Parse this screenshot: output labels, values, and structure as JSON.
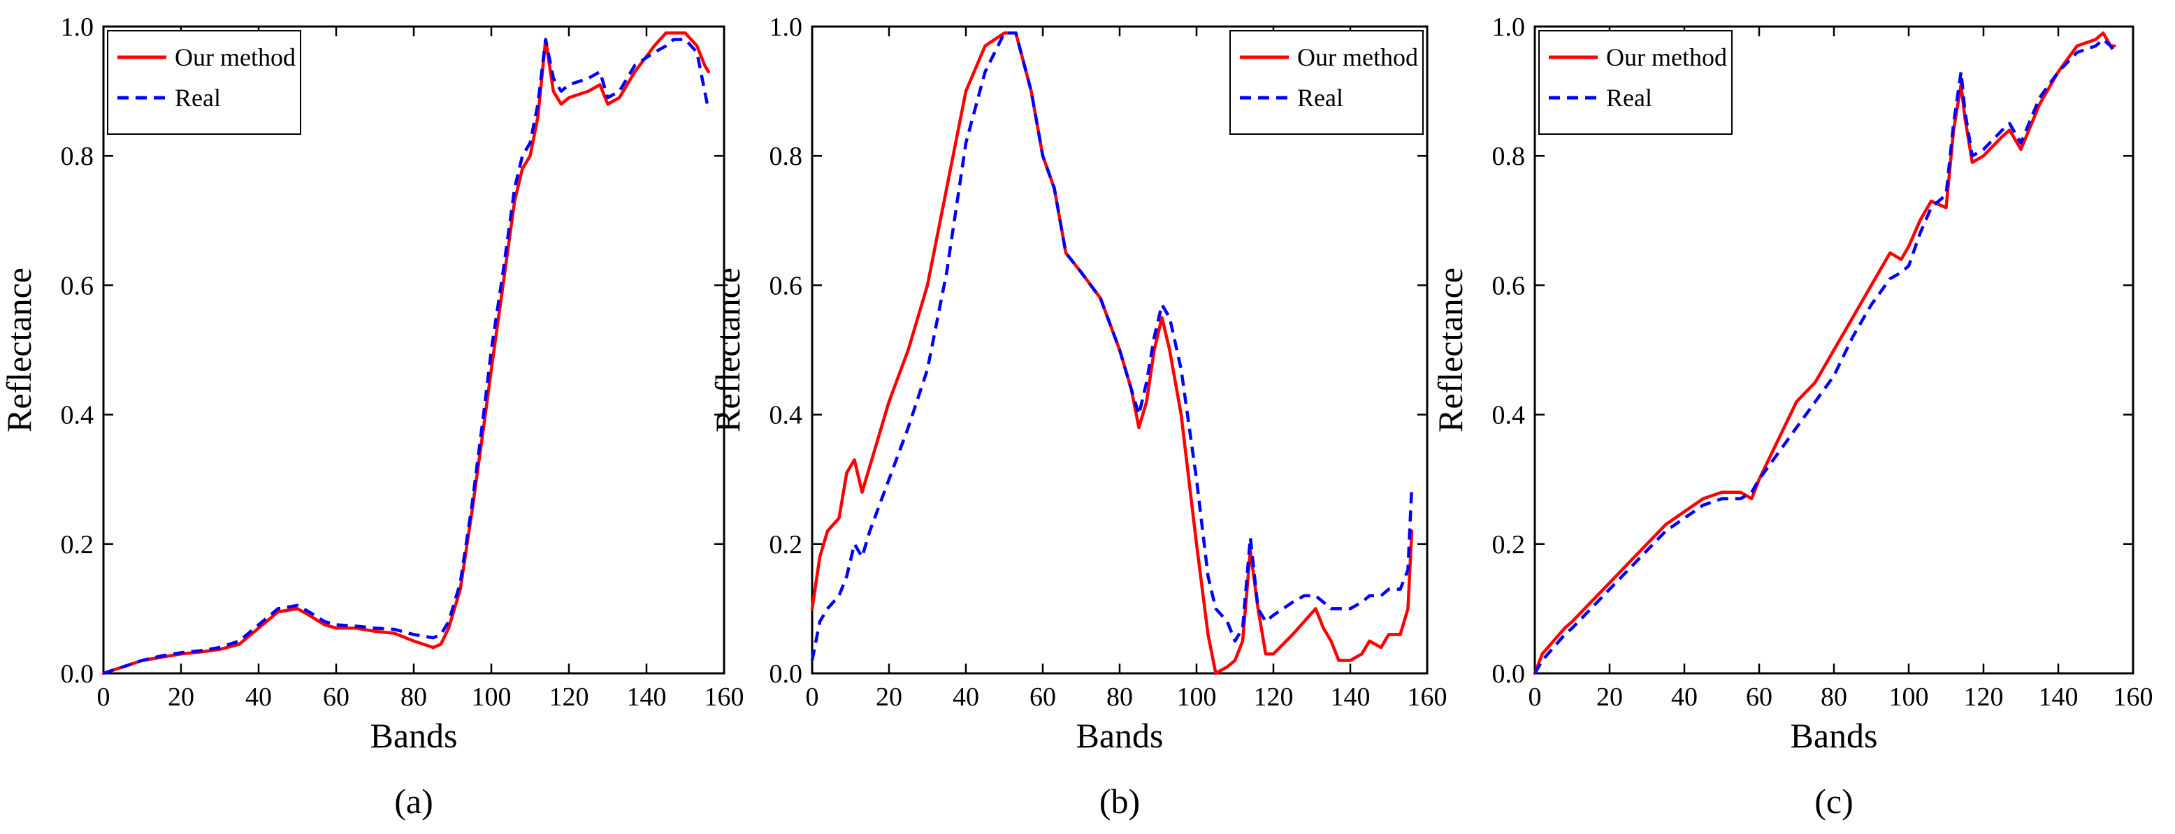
{
  "chart_data": [
    {
      "type": "line",
      "caption": "(a)",
      "xlabel": "Bands",
      "ylabel": "Reflectance",
      "xlim": [
        0,
        160
      ],
      "ylim": [
        0,
        1
      ],
      "xticks": [
        "0",
        "20",
        "40",
        "60",
        "80",
        "100",
        "120",
        "140",
        "160"
      ],
      "yticks": [
        "0.0",
        "0.2",
        "0.4",
        "0.6",
        "0.8",
        "1.0"
      ],
      "grid": false,
      "legend_position": "top-left",
      "series": [
        {
          "name": "Our method",
          "color": "#ff0000",
          "style": "solid",
          "x": [
            0,
            5,
            10,
            15,
            20,
            25,
            30,
            35,
            40,
            45,
            50,
            53,
            57,
            60,
            65,
            70,
            75,
            80,
            85,
            87,
            89,
            92,
            95,
            98,
            100,
            103,
            106,
            108,
            110,
            112,
            114,
            116,
            118,
            120,
            125,
            128,
            130,
            133,
            137,
            142,
            145,
            147,
            150,
            153,
            155,
            156
          ],
          "y": [
            0.0,
            0.01,
            0.02,
            0.025,
            0.03,
            0.033,
            0.037,
            0.045,
            0.07,
            0.095,
            0.1,
            0.09,
            0.075,
            0.07,
            0.07,
            0.065,
            0.062,
            0.05,
            0.04,
            0.045,
            0.07,
            0.13,
            0.25,
            0.38,
            0.47,
            0.6,
            0.73,
            0.78,
            0.8,
            0.86,
            0.98,
            0.9,
            0.88,
            0.89,
            0.9,
            0.91,
            0.88,
            0.89,
            0.93,
            0.97,
            0.99,
            0.99,
            0.99,
            0.97,
            0.94,
            0.93
          ]
        },
        {
          "name": "Real",
          "color": "#0000ff",
          "style": "dashed",
          "x": [
            0,
            5,
            10,
            15,
            20,
            25,
            30,
            35,
            40,
            45,
            50,
            53,
            57,
            60,
            65,
            70,
            75,
            80,
            85,
            87,
            89,
            92,
            95,
            98,
            100,
            103,
            106,
            108,
            110,
            112,
            114,
            116,
            118,
            120,
            125,
            128,
            130,
            133,
            137,
            142,
            145,
            147,
            150,
            153,
            155,
            156
          ],
          "y": [
            0.0,
            0.01,
            0.02,
            0.027,
            0.032,
            0.035,
            0.04,
            0.05,
            0.075,
            0.1,
            0.105,
            0.095,
            0.08,
            0.075,
            0.073,
            0.07,
            0.068,
            0.06,
            0.055,
            0.06,
            0.08,
            0.14,
            0.26,
            0.4,
            0.5,
            0.62,
            0.75,
            0.8,
            0.82,
            0.88,
            0.98,
            0.92,
            0.9,
            0.91,
            0.92,
            0.93,
            0.89,
            0.9,
            0.94,
            0.96,
            0.97,
            0.98,
            0.98,
            0.96,
            0.9,
            0.87
          ]
        }
      ]
    },
    {
      "type": "line",
      "caption": "(b)",
      "xlabel": "Bands",
      "ylabel": "Reflectance",
      "xlim": [
        0,
        160
      ],
      "ylim": [
        0,
        1
      ],
      "xticks": [
        "0",
        "20",
        "40",
        "60",
        "80",
        "100",
        "120",
        "140",
        "160"
      ],
      "yticks": [
        "0.0",
        "0.2",
        "0.4",
        "0.6",
        "0.8",
        "1.0"
      ],
      "grid": false,
      "legend_position": "top-right",
      "series": [
        {
          "name": "Our method",
          "color": "#ff0000",
          "style": "solid",
          "x": [
            0,
            2,
            4,
            7,
            9,
            11,
            13,
            15,
            20,
            25,
            30,
            35,
            40,
            45,
            50,
            53,
            57,
            60,
            63,
            66,
            70,
            75,
            80,
            83,
            85,
            87,
            89,
            91,
            93,
            96,
            100,
            103,
            105,
            108,
            110,
            112,
            114,
            116,
            118,
            120,
            125,
            128,
            131,
            133,
            135,
            137,
            140,
            143,
            145,
            148,
            150,
            153,
            155,
            156
          ],
          "y": [
            0.1,
            0.18,
            0.22,
            0.24,
            0.31,
            0.33,
            0.28,
            0.32,
            0.42,
            0.5,
            0.6,
            0.75,
            0.9,
            0.97,
            0.99,
            0.99,
            0.9,
            0.8,
            0.75,
            0.65,
            0.62,
            0.58,
            0.5,
            0.44,
            0.38,
            0.42,
            0.5,
            0.55,
            0.5,
            0.4,
            0.2,
            0.06,
            0.0,
            0.01,
            0.02,
            0.05,
            0.19,
            0.1,
            0.03,
            0.03,
            0.06,
            0.08,
            0.1,
            0.07,
            0.05,
            0.02,
            0.02,
            0.03,
            0.05,
            0.04,
            0.06,
            0.06,
            0.1,
            0.22
          ]
        },
        {
          "name": "Real",
          "color": "#0000ff",
          "style": "dashed",
          "x": [
            0,
            2,
            4,
            7,
            9,
            11,
            13,
            15,
            20,
            25,
            30,
            35,
            40,
            45,
            50,
            53,
            57,
            60,
            63,
            66,
            70,
            75,
            80,
            83,
            85,
            87,
            89,
            91,
            93,
            96,
            100,
            103,
            105,
            108,
            110,
            112,
            114,
            116,
            118,
            120,
            125,
            128,
            131,
            133,
            135,
            137,
            140,
            143,
            145,
            148,
            150,
            153,
            155,
            156
          ],
          "y": [
            0.02,
            0.08,
            0.1,
            0.12,
            0.15,
            0.2,
            0.18,
            0.22,
            0.3,
            0.38,
            0.47,
            0.62,
            0.82,
            0.93,
            0.99,
            0.99,
            0.9,
            0.8,
            0.75,
            0.65,
            0.62,
            0.58,
            0.5,
            0.44,
            0.4,
            0.45,
            0.52,
            0.57,
            0.55,
            0.47,
            0.3,
            0.15,
            0.1,
            0.08,
            0.05,
            0.07,
            0.21,
            0.1,
            0.08,
            0.09,
            0.11,
            0.12,
            0.12,
            0.11,
            0.1,
            0.1,
            0.1,
            0.11,
            0.12,
            0.12,
            0.13,
            0.13,
            0.16,
            0.29
          ]
        }
      ]
    },
    {
      "type": "line",
      "caption": "(c)",
      "xlabel": "Bands",
      "ylabel": "Reflectance",
      "xlim": [
        0,
        160
      ],
      "ylim": [
        0,
        1
      ],
      "xticks": [
        "0",
        "20",
        "40",
        "60",
        "80",
        "100",
        "120",
        "140",
        "160"
      ],
      "yticks": [
        "0.0",
        "0.2",
        "0.4",
        "0.6",
        "0.8",
        "1.0"
      ],
      "grid": false,
      "legend_position": "top-left",
      "series": [
        {
          "name": "Our method",
          "color": "#ff0000",
          "style": "solid",
          "x": [
            0,
            2,
            5,
            8,
            10,
            15,
            20,
            25,
            30,
            35,
            40,
            45,
            50,
            55,
            58,
            60,
            65,
            70,
            75,
            80,
            85,
            90,
            95,
            98,
            100,
            103,
            106,
            110,
            112,
            114,
            115,
            117,
            120,
            125,
            127,
            130,
            135,
            140,
            145,
            150,
            152,
            154,
            155
          ],
          "y": [
            0.0,
            0.03,
            0.05,
            0.07,
            0.08,
            0.11,
            0.14,
            0.17,
            0.2,
            0.23,
            0.25,
            0.27,
            0.28,
            0.28,
            0.27,
            0.3,
            0.36,
            0.42,
            0.45,
            0.5,
            0.55,
            0.6,
            0.65,
            0.64,
            0.66,
            0.7,
            0.73,
            0.72,
            0.84,
            0.91,
            0.86,
            0.79,
            0.8,
            0.83,
            0.84,
            0.81,
            0.88,
            0.93,
            0.97,
            0.98,
            0.99,
            0.97,
            0.97
          ]
        },
        {
          "name": "Real",
          "color": "#0000ff",
          "style": "dashed",
          "x": [
            0,
            2,
            5,
            8,
            10,
            15,
            20,
            25,
            30,
            35,
            40,
            45,
            50,
            55,
            58,
            60,
            65,
            70,
            75,
            80,
            85,
            90,
            95,
            98,
            100,
            103,
            106,
            110,
            112,
            114,
            115,
            117,
            120,
            125,
            127,
            130,
            135,
            140,
            145,
            150,
            152,
            154,
            155
          ],
          "y": [
            0.0,
            0.02,
            0.04,
            0.06,
            0.07,
            0.1,
            0.13,
            0.16,
            0.19,
            0.22,
            0.24,
            0.26,
            0.27,
            0.27,
            0.28,
            0.3,
            0.34,
            0.38,
            0.42,
            0.46,
            0.52,
            0.57,
            0.61,
            0.62,
            0.63,
            0.68,
            0.72,
            0.74,
            0.85,
            0.93,
            0.87,
            0.8,
            0.81,
            0.84,
            0.85,
            0.82,
            0.89,
            0.93,
            0.96,
            0.97,
            0.98,
            0.97,
            0.96
          ]
        }
      ]
    }
  ]
}
